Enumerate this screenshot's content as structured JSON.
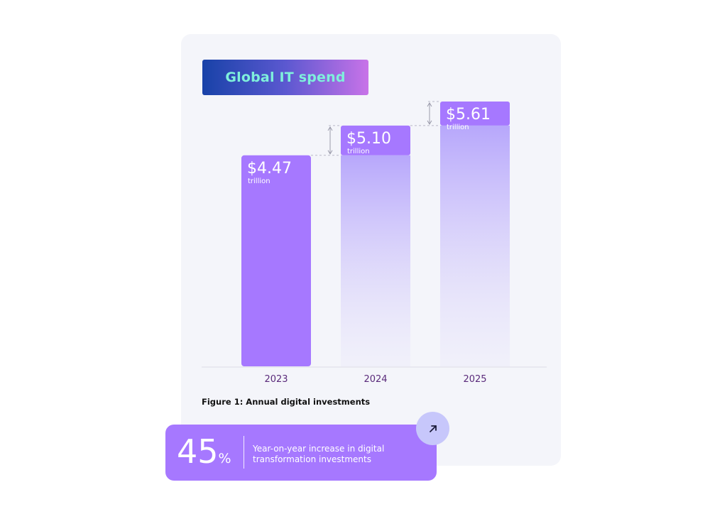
{
  "header": {
    "title": "Global IT spend"
  },
  "chart_data": {
    "type": "bar",
    "categories": [
      "2023",
      "2024",
      "2025"
    ],
    "values": [
      4.47,
      5.1,
      5.61
    ],
    "value_labels": [
      "$4.47",
      "$5.10",
      "$5.61"
    ],
    "unit_label": "trillion",
    "ylim": [
      0,
      5.61
    ],
    "grid": false,
    "title": "",
    "xlabel": "",
    "ylabel": ""
  },
  "caption": "Figure 1: Annual digital investments",
  "stat": {
    "value": "45",
    "unit": "%",
    "description": "Year-on-year increase in digital transformation investments"
  },
  "colors": {
    "bar_solid": "#a678ff",
    "bar_fade": "#b7a7fb",
    "axis_labels": "#5a2a7a",
    "title_text": "#7ff0dc"
  },
  "icons": {
    "stat_button": "arrow-up-right-icon"
  }
}
